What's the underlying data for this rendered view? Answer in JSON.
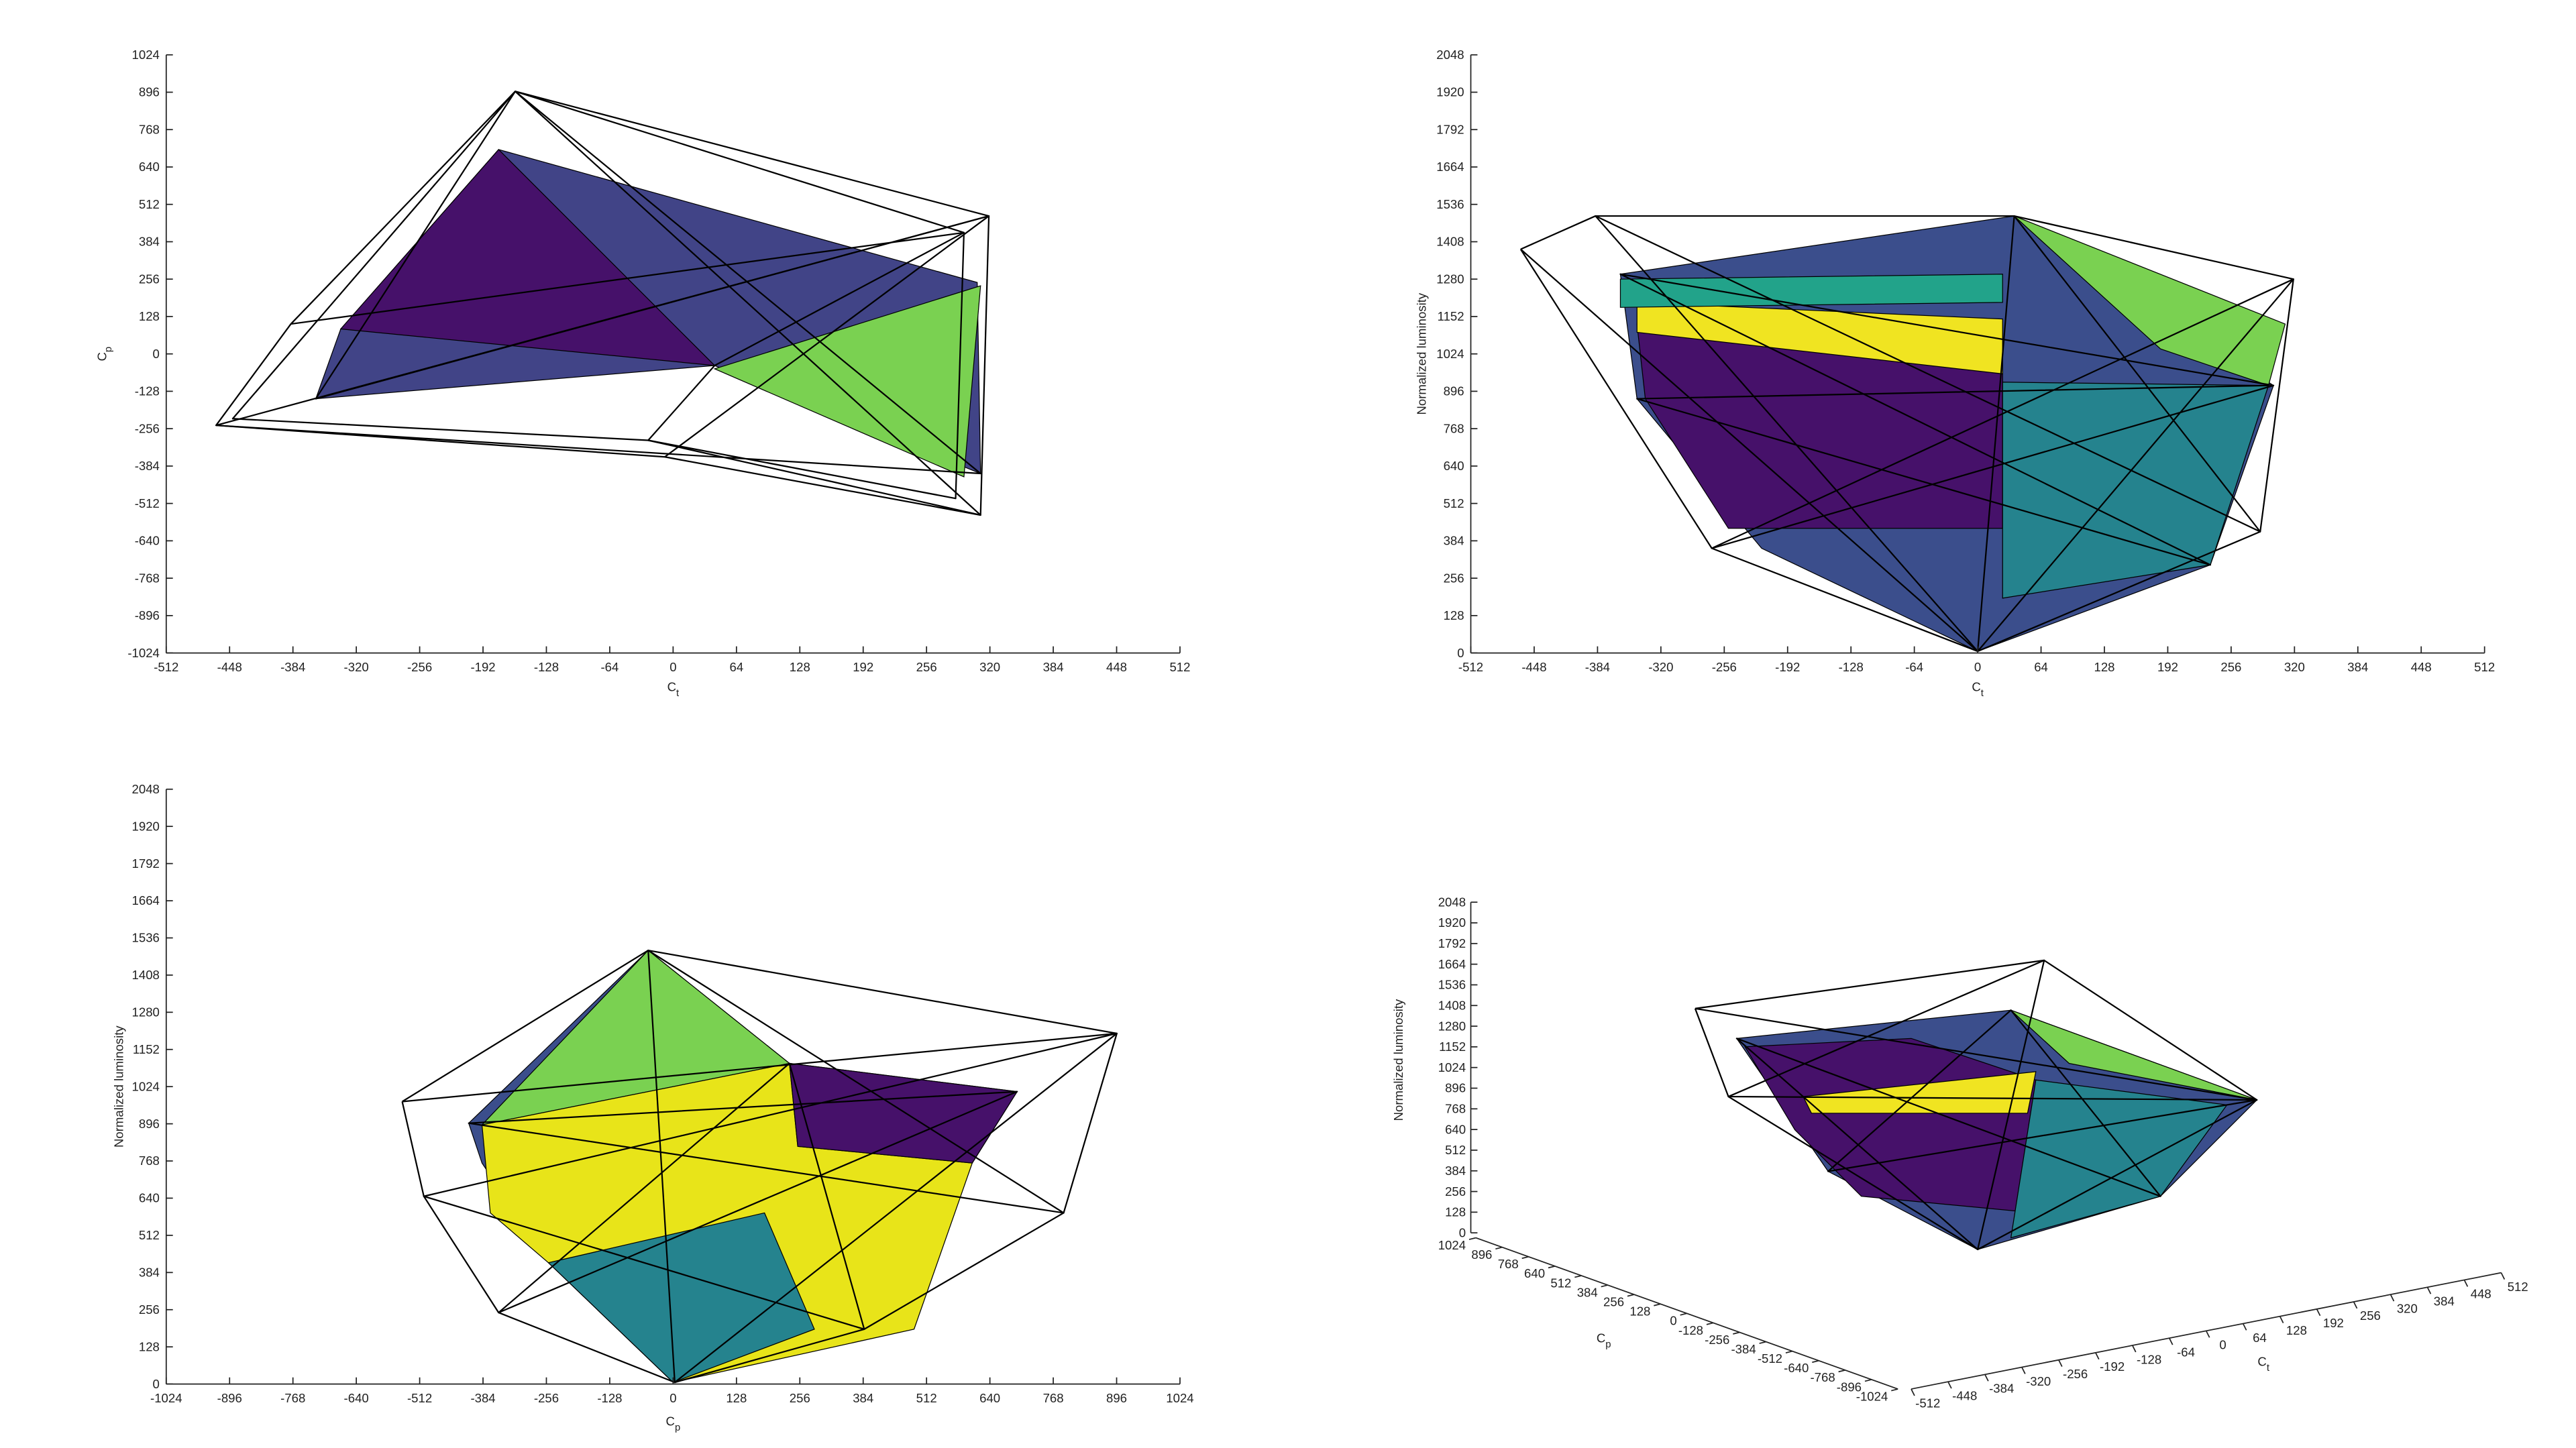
{
  "chart_data": [
    {
      "type": "patch",
      "xlabel": "C",
      "xlabel_subscript": "t",
      "ylabel": "C",
      "ylabel_subscript": "p",
      "xlim": [
        -512,
        512
      ],
      "xticks": [
        -512,
        -448,
        -384,
        -320,
        -256,
        -192,
        -128,
        -64,
        0,
        64,
        128,
        192,
        256,
        320,
        384,
        448,
        512
      ],
      "ylim": [
        -1024,
        1024
      ],
      "yticks": [
        -1024,
        -896,
        -768,
        -640,
        -512,
        -384,
        -256,
        -128,
        0,
        128,
        256,
        384,
        512,
        640,
        768,
        896,
        1024
      ]
    },
    {
      "type": "patch",
      "xlabel": "C",
      "xlabel_subscript": "t",
      "ylabel": "Normalized luminosity",
      "xlim": [
        -512,
        512
      ],
      "xticks": [
        -512,
        -448,
        -384,
        -320,
        -256,
        -192,
        -128,
        -64,
        0,
        64,
        128,
        192,
        256,
        320,
        384,
        448,
        512
      ],
      "ylim": [
        0,
        2048
      ],
      "yticks": [
        0,
        128,
        256,
        384,
        512,
        640,
        768,
        896,
        1024,
        1152,
        1280,
        1408,
        1536,
        1664,
        1792,
        1920,
        2048
      ]
    },
    {
      "type": "patch",
      "xlabel": "C",
      "xlabel_subscript": "p",
      "ylabel": "Normalized luminosity",
      "xlim": [
        -1024,
        1024
      ],
      "xticks": [
        -1024,
        -896,
        -768,
        -640,
        -512,
        -384,
        -256,
        -128,
        0,
        128,
        256,
        384,
        512,
        640,
        768,
        896,
        1024
      ],
      "ylim": [
        0,
        2048
      ],
      "yticks": [
        0,
        128,
        256,
        384,
        512,
        640,
        768,
        896,
        1024,
        1152,
        1280,
        1408,
        1536,
        1664,
        1792,
        1920,
        2048
      ]
    },
    {
      "type": "patch",
      "xlabel": "C",
      "xlabel_subscript": "t",
      "ylabel": "C",
      "ylabel_subscript": "p",
      "zlabel": "Normalized luminosity",
      "xlim": [
        -512,
        512
      ],
      "xticks": [
        -512,
        -448,
        -384,
        -320,
        -256,
        -192,
        -128,
        -64,
        0,
        64,
        128,
        192,
        256,
        320,
        384,
        448,
        512
      ],
      "ylim": [
        -1024,
        1024
      ],
      "yticks": [
        -1024,
        -896,
        -768,
        -640,
        -512,
        -384,
        -256,
        -128,
        0,
        128,
        256,
        384,
        512,
        640,
        768,
        896,
        1024
      ],
      "zlim": [
        0,
        2048
      ],
      "zticks": [
        0,
        128,
        256,
        384,
        512,
        640,
        768,
        896,
        1024,
        1152,
        1280,
        1408,
        1536,
        1664,
        1792,
        1920,
        2048
      ]
    }
  ]
}
